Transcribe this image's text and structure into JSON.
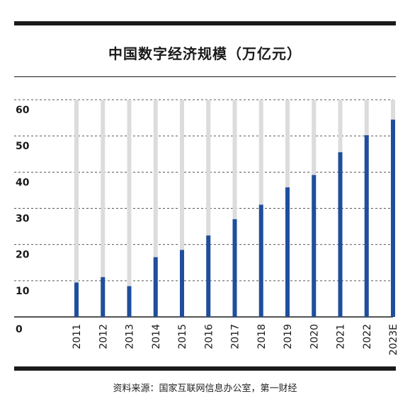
{
  "header": {
    "title": "中国数字经济规模（万亿元）"
  },
  "footer": {
    "source": "资料来源：国家互联网信息办公室，第一财经"
  },
  "colors": {
    "bar": "#1f4e9c",
    "track": "#dcdcdc",
    "grid": "#555555",
    "text": "#1a1a1a"
  },
  "chart_data": {
    "type": "bar",
    "title": "中国数字经济规模（万亿元）",
    "xlabel": "",
    "ylabel": "",
    "ylim": [
      0,
      60
    ],
    "yticks": [
      0,
      10,
      20,
      30,
      40,
      50,
      60
    ],
    "grid": true,
    "categories": [
      "2011",
      "2012",
      "2013",
      "2014",
      "2015",
      "2016",
      "2017",
      "2018",
      "2019",
      "2020",
      "2021",
      "2022",
      "2023E"
    ],
    "values": [
      9.5,
      11,
      8.5,
      16.5,
      18.5,
      22.5,
      27,
      31,
      35.8,
      39.2,
      45.5,
      50.2,
      54.5
    ]
  }
}
